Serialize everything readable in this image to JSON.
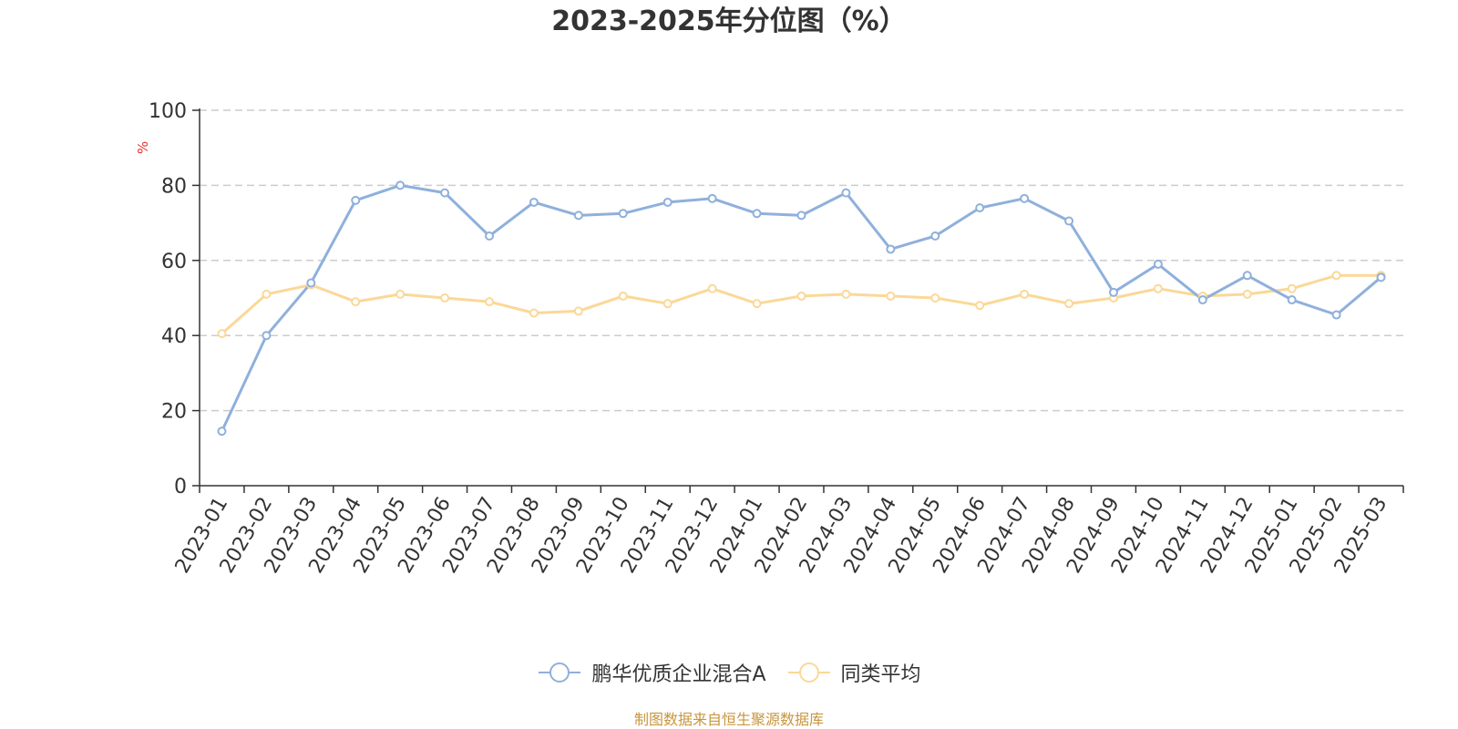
{
  "title": "2023-2025年分位图（%）",
  "source": "制图数据来自恒生聚源数据库",
  "chart_data": {
    "type": "line",
    "title": "2023-2025年分位图（%）",
    "ylabel": "%",
    "ylim": [
      0,
      100
    ],
    "yticks": [
      0,
      20,
      40,
      60,
      80,
      100
    ],
    "grid": true,
    "legend_position": "bottom",
    "categories": [
      "2023-01",
      "2023-02",
      "2023-03",
      "2023-04",
      "2023-05",
      "2023-06",
      "2023-07",
      "2023-08",
      "2023-09",
      "2023-10",
      "2023-11",
      "2023-12",
      "2024-01",
      "2024-02",
      "2024-03",
      "2024-04",
      "2024-05",
      "2024-06",
      "2024-07",
      "2024-08",
      "2024-09",
      "2024-10",
      "2024-11",
      "2024-12",
      "2025-01",
      "2025-02",
      "2025-03"
    ],
    "series": [
      {
        "name": "鹏华优质企业混合A",
        "color": "#8fb0dc",
        "values": [
          14.5,
          40,
          54,
          76,
          80,
          78,
          66.5,
          75.5,
          72,
          72.5,
          75.5,
          76.5,
          72.5,
          72,
          78,
          63,
          66.5,
          74,
          76.5,
          70.5,
          51.5,
          59,
          49.5,
          56,
          49.5,
          45.5,
          55.5
        ]
      },
      {
        "name": "同类平均",
        "color": "#fbd898",
        "values": [
          40.5,
          51,
          53.5,
          49,
          51,
          50,
          49,
          46,
          46.5,
          50.5,
          48.5,
          52.5,
          48.5,
          50.5,
          51,
          50.5,
          50,
          48,
          51,
          48.5,
          50,
          52.5,
          50.5,
          51,
          52.5,
          56,
          56
        ]
      }
    ]
  }
}
